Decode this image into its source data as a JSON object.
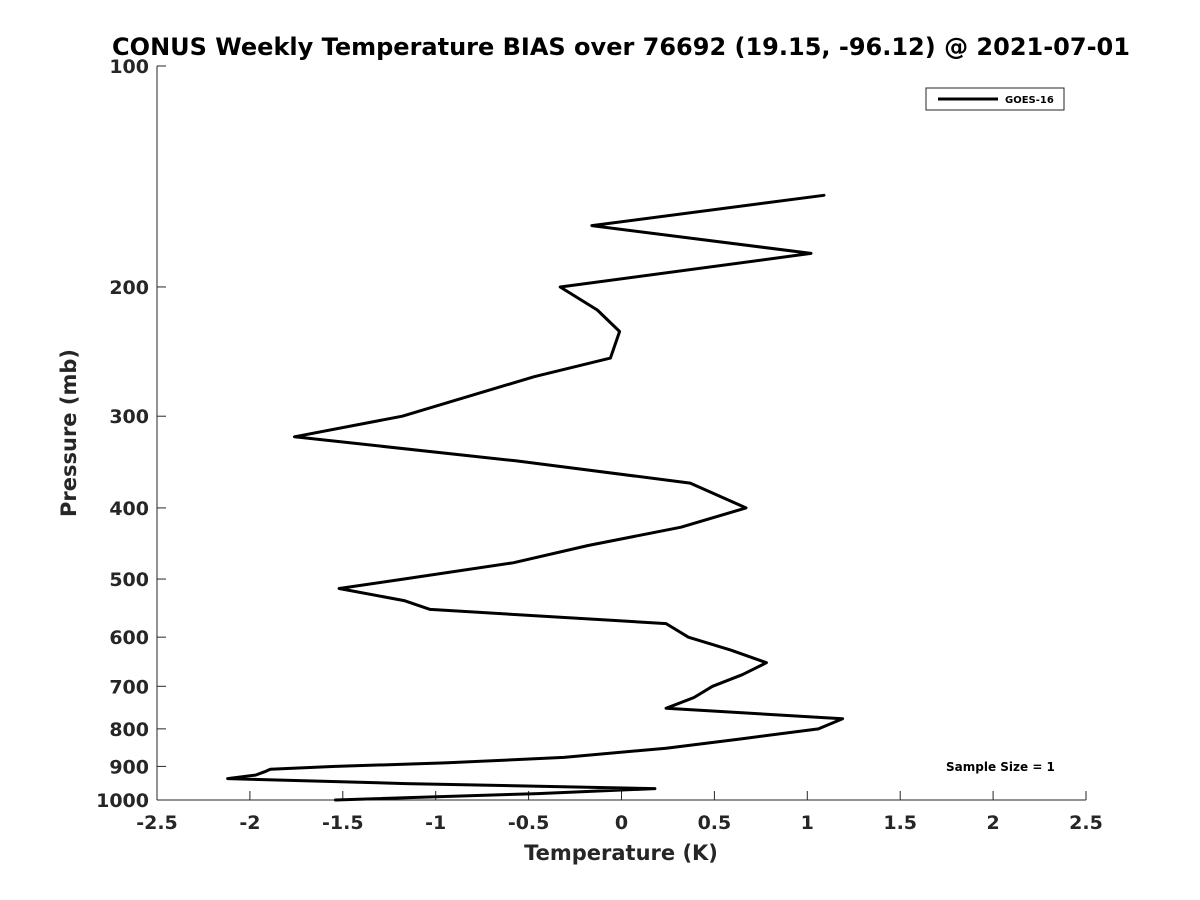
{
  "chart_data": {
    "type": "line",
    "title": "CONUS Weekly Temperature BIAS over 76692 (19.15, -96.12) @ 2021-07-01",
    "xlabel": "Temperature (K)",
    "ylabel": "Pressure (mb)",
    "xlim": [
      -2.5,
      2.5
    ],
    "ylim": [
      100,
      1000
    ],
    "y_scale": "log",
    "y_reversed": true,
    "x_ticks": [
      -2.5,
      -2,
      -1.5,
      -1,
      -0.5,
      0,
      0.5,
      1,
      1.5,
      2,
      2.5
    ],
    "x_tick_labels": [
      "-2.5",
      "-2",
      "-1.5",
      "-1",
      "-0.5",
      "0",
      "0.5",
      "1",
      "1.5",
      "2",
      "2.5"
    ],
    "y_ticks": [
      100,
      200,
      300,
      400,
      500,
      600,
      700,
      800,
      900,
      1000
    ],
    "y_tick_labels": [
      "100",
      "200",
      "300",
      "400",
      "500",
      "600",
      "700",
      "800",
      "900",
      "1000"
    ],
    "grid": false,
    "legend_position": "top-right",
    "series": [
      {
        "name": "GOES-16",
        "color": "#000000",
        "points": [
          {
            "t": 1.09,
            "p": 150
          },
          {
            "t": -0.16,
            "p": 165
          },
          {
            "t": 1.02,
            "p": 180
          },
          {
            "t": -0.33,
            "p": 200
          },
          {
            "t": -0.13,
            "p": 215
          },
          {
            "t": -0.01,
            "p": 230
          },
          {
            "t": -0.06,
            "p": 250
          },
          {
            "t": -0.47,
            "p": 265
          },
          {
            "t": -1.18,
            "p": 300
          },
          {
            "t": -1.76,
            "p": 320
          },
          {
            "t": -0.57,
            "p": 345
          },
          {
            "t": 0.37,
            "p": 370
          },
          {
            "t": 0.67,
            "p": 400
          },
          {
            "t": 0.32,
            "p": 425
          },
          {
            "t": -0.18,
            "p": 450
          },
          {
            "t": -0.58,
            "p": 475
          },
          {
            "t": -1.17,
            "p": 500
          },
          {
            "t": -1.52,
            "p": 515
          },
          {
            "t": -1.17,
            "p": 535
          },
          {
            "t": -1.03,
            "p": 550
          },
          {
            "t": 0.24,
            "p": 575
          },
          {
            "t": 0.36,
            "p": 600
          },
          {
            "t": 0.59,
            "p": 625
          },
          {
            "t": 0.78,
            "p": 650
          },
          {
            "t": 0.65,
            "p": 675
          },
          {
            "t": 0.49,
            "p": 700
          },
          {
            "t": 0.39,
            "p": 725
          },
          {
            "t": 0.24,
            "p": 750
          },
          {
            "t": 1.19,
            "p": 775
          },
          {
            "t": 1.06,
            "p": 800
          },
          {
            "t": 0.65,
            "p": 825
          },
          {
            "t": 0.24,
            "p": 850
          },
          {
            "t": -0.31,
            "p": 875
          },
          {
            "t": -0.95,
            "p": 890
          },
          {
            "t": -1.54,
            "p": 900
          },
          {
            "t": -1.89,
            "p": 908
          },
          {
            "t": -1.92,
            "p": 915
          },
          {
            "t": -1.97,
            "p": 925
          },
          {
            "t": -2.12,
            "p": 935
          },
          {
            "t": -1.16,
            "p": 950
          },
          {
            "t": 0.18,
            "p": 965
          },
          {
            "t": -0.45,
            "p": 980
          },
          {
            "t": -1.54,
            "p": 1000
          }
        ]
      }
    ],
    "annotations": [
      "Sample Size = 1"
    ]
  }
}
